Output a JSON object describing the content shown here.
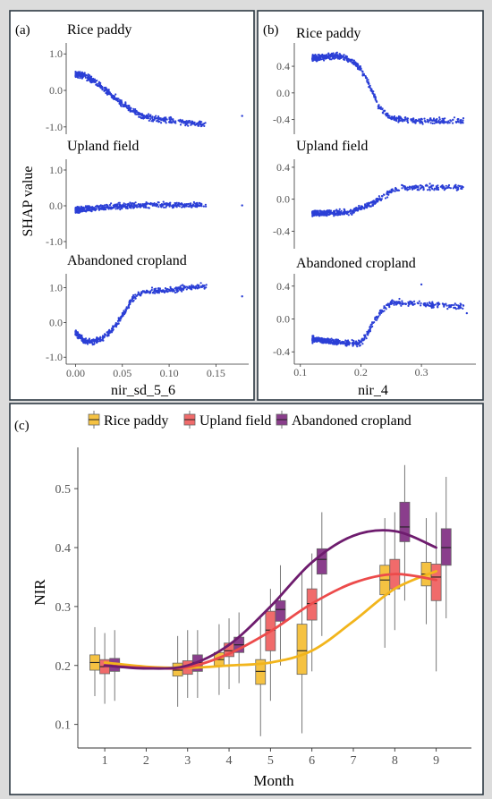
{
  "panels": {
    "a": {
      "label": "(a)",
      "xlabel": "nir_sd_5_6",
      "ylabel": "SHAP value"
    },
    "b": {
      "label": "(b)",
      "xlabel": "nir_4"
    },
    "c": {
      "label": "(c)",
      "xlabel": "Month",
      "ylabel": "NIR"
    }
  },
  "chart_data": [
    {
      "panel": "a",
      "type": "scatter",
      "xlabel": "nir_sd_5_6",
      "ylabel": "SHAP value",
      "xlim": [
        -0.01,
        0.185
      ],
      "xticks": [
        0.0,
        0.05,
        0.1,
        0.15
      ],
      "xtick_labels": [
        "0.00",
        "0.05",
        "0.10",
        "0.15"
      ],
      "color": "#2b3fd6",
      "subplots": [
        {
          "title": "Rice paddy",
          "ylim": [
            -1.2,
            1.3
          ],
          "yticks": [
            -1.0,
            0.0,
            1.0
          ],
          "ytick_labels": [
            "-1.0",
            "0.0",
            "1.0"
          ],
          "trend": [
            [
              0.0,
              0.45
            ],
            [
              0.01,
              0.4
            ],
            [
              0.02,
              0.25
            ],
            [
              0.03,
              0.05
            ],
            [
              0.04,
              -0.15
            ],
            [
              0.05,
              -0.35
            ],
            [
              0.06,
              -0.55
            ],
            [
              0.07,
              -0.68
            ],
            [
              0.08,
              -0.75
            ],
            [
              0.1,
              -0.82
            ],
            [
              0.12,
              -0.88
            ],
            [
              0.14,
              -0.95
            ]
          ],
          "outliers": [
            [
              0.178,
              -0.7
            ]
          ]
        },
        {
          "title": "Upland field",
          "ylim": [
            -1.2,
            1.3
          ],
          "yticks": [
            -1.0,
            0.0,
            1.0
          ],
          "ytick_labels": [
            "-1.0",
            "0.0",
            "1.0"
          ],
          "trend": [
            [
              0.0,
              -0.12
            ],
            [
              0.02,
              -0.08
            ],
            [
              0.04,
              -0.03
            ],
            [
              0.06,
              0.0
            ],
            [
              0.08,
              0.02
            ],
            [
              0.1,
              0.02
            ],
            [
              0.12,
              0.02
            ],
            [
              0.14,
              0.02
            ]
          ],
          "outliers": [
            [
              0.178,
              0.01
            ]
          ]
        },
        {
          "title": "Abandoned cropland",
          "ylim": [
            -1.2,
            1.4
          ],
          "yticks": [
            -1.0,
            0.0,
            1.0
          ],
          "ytick_labels": [
            "-1.0",
            "0.0",
            "1.0"
          ],
          "trend": [
            [
              0.0,
              -0.3
            ],
            [
              0.01,
              -0.55
            ],
            [
              0.02,
              -0.55
            ],
            [
              0.03,
              -0.45
            ],
            [
              0.04,
              -0.2
            ],
            [
              0.05,
              0.2
            ],
            [
              0.06,
              0.65
            ],
            [
              0.07,
              0.85
            ],
            [
              0.08,
              0.9
            ],
            [
              0.1,
              0.95
            ],
            [
              0.12,
              1.0
            ],
            [
              0.14,
              1.05
            ]
          ],
          "outliers": [
            [
              0.178,
              0.75
            ]
          ]
        }
      ]
    },
    {
      "panel": "b",
      "type": "scatter",
      "xlabel": "nir_4",
      "xlim": [
        0.09,
        0.39
      ],
      "xticks": [
        0.1,
        0.2,
        0.3
      ],
      "xtick_labels": [
        "0.1",
        "0.2",
        "0.3"
      ],
      "color": "#2b3fd6",
      "subplots": [
        {
          "title": "Rice paddy",
          "ylim": [
            -0.62,
            0.75
          ],
          "yticks": [
            -0.4,
            0.0,
            0.4
          ],
          "ytick_labels": [
            "-0.4",
            "0.0",
            "0.4"
          ],
          "trend": [
            [
              0.12,
              0.52
            ],
            [
              0.15,
              0.55
            ],
            [
              0.17,
              0.55
            ],
            [
              0.19,
              0.45
            ],
            [
              0.2,
              0.35
            ],
            [
              0.21,
              0.2
            ],
            [
              0.22,
              0.0
            ],
            [
              0.23,
              -0.2
            ],
            [
              0.24,
              -0.32
            ],
            [
              0.25,
              -0.38
            ],
            [
              0.27,
              -0.4
            ],
            [
              0.3,
              -0.42
            ],
            [
              0.37,
              -0.42
            ]
          ],
          "outliers": []
        },
        {
          "title": "Upland field",
          "ylim": [
            -0.62,
            0.5
          ],
          "yticks": [
            -0.4,
            0.0,
            0.4
          ],
          "ytick_labels": [
            "-0.4",
            "0.0",
            "0.4"
          ],
          "trend": [
            [
              0.12,
              -0.18
            ],
            [
              0.16,
              -0.17
            ],
            [
              0.18,
              -0.16
            ],
            [
              0.2,
              -0.12
            ],
            [
              0.22,
              -0.05
            ],
            [
              0.23,
              0.0
            ],
            [
              0.24,
              0.05
            ],
            [
              0.25,
              0.1
            ],
            [
              0.27,
              0.15
            ],
            [
              0.3,
              0.15
            ],
            [
              0.37,
              0.15
            ]
          ],
          "outliers": []
        },
        {
          "title": "Abandoned cropland",
          "ylim": [
            -0.55,
            0.55
          ],
          "yticks": [
            -0.4,
            0.0,
            0.4
          ],
          "ytick_labels": [
            "-0.4",
            "0.0",
            "0.4"
          ],
          "trend": [
            [
              0.12,
              -0.25
            ],
            [
              0.16,
              -0.28
            ],
            [
              0.19,
              -0.3
            ],
            [
              0.2,
              -0.28
            ],
            [
              0.21,
              -0.2
            ],
            [
              0.22,
              -0.05
            ],
            [
              0.23,
              0.05
            ],
            [
              0.24,
              0.15
            ],
            [
              0.25,
              0.2
            ],
            [
              0.27,
              0.2
            ],
            [
              0.3,
              0.18
            ],
            [
              0.37,
              0.15
            ]
          ],
          "outliers": [
            [
              0.375,
              0.07
            ],
            [
              0.3,
              0.42
            ]
          ]
        }
      ]
    },
    {
      "panel": "c",
      "type": "box",
      "xlabel": "Month",
      "ylabel": "NIR",
      "xlim": [
        0.35,
        9.85
      ],
      "ylim": [
        0.06,
        0.57
      ],
      "xticks": [
        1,
        2,
        3,
        4,
        5,
        6,
        7,
        8,
        9
      ],
      "xtick_labels": [
        "1",
        "2",
        "3",
        "4",
        "5",
        "6",
        "7",
        "8",
        "9"
      ],
      "yticks": [
        0.1,
        0.2,
        0.3,
        0.4,
        0.5
      ],
      "ytick_labels": [
        "0.1",
        "0.2",
        "0.3",
        "0.4",
        "0.5"
      ],
      "legend_position": "top",
      "series": [
        {
          "name": "Rice paddy",
          "fill": "#f5c242",
          "line": "#f2b51c",
          "boxes": [
            {
              "x": 1,
              "q1": 0.192,
              "median": 0.205,
              "q3": 0.218,
              "lo": 0.148,
              "hi": 0.265
            },
            {
              "x": 3,
              "q1": 0.182,
              "median": 0.192,
              "q3": 0.204,
              "lo": 0.13,
              "hi": 0.25
            },
            {
              "x": 4,
              "q1": 0.2,
              "median": 0.21,
              "q3": 0.222,
              "lo": 0.15,
              "hi": 0.27
            },
            {
              "x": 5,
              "q1": 0.168,
              "median": 0.19,
              "q3": 0.21,
              "lo": 0.08,
              "hi": 0.28
            },
            {
              "x": 6,
              "q1": 0.185,
              "median": 0.225,
              "q3": 0.27,
              "lo": 0.085,
              "hi": 0.36
            },
            {
              "x": 8,
              "q1": 0.32,
              "median": 0.345,
              "q3": 0.37,
              "lo": 0.23,
              "hi": 0.45
            },
            {
              "x": 9,
              "q1": 0.335,
              "median": 0.355,
              "q3": 0.375,
              "lo": 0.27,
              "hi": 0.45
            }
          ],
          "curve": [
            [
              1,
              0.205
            ],
            [
              2,
              0.198
            ],
            [
              3,
              0.196
            ],
            [
              4,
              0.2
            ],
            [
              5,
              0.205
            ],
            [
              6,
              0.225
            ],
            [
              7,
              0.275
            ],
            [
              8,
              0.33
            ],
            [
              9,
              0.36
            ]
          ]
        },
        {
          "name": "Upland field",
          "fill": "#f06b6b",
          "line": "#ec4b4b",
          "boxes": [
            {
              "x": 1,
              "q1": 0.186,
              "median": 0.198,
              "q3": 0.21,
              "lo": 0.135,
              "hi": 0.255
            },
            {
              "x": 3,
              "q1": 0.185,
              "median": 0.196,
              "q3": 0.208,
              "lo": 0.145,
              "hi": 0.26
            },
            {
              "x": 4,
              "q1": 0.215,
              "median": 0.225,
              "q3": 0.238,
              "lo": 0.16,
              "hi": 0.28
            },
            {
              "x": 5,
              "q1": 0.225,
              "median": 0.26,
              "q3": 0.292,
              "lo": 0.14,
              "hi": 0.33
            },
            {
              "x": 6,
              "q1": 0.277,
              "median": 0.305,
              "q3": 0.33,
              "lo": 0.19,
              "hi": 0.39
            },
            {
              "x": 8,
              "q1": 0.33,
              "median": 0.355,
              "q3": 0.38,
              "lo": 0.26,
              "hi": 0.46
            },
            {
              "x": 9,
              "q1": 0.31,
              "median": 0.35,
              "q3": 0.372,
              "lo": 0.19,
              "hi": 0.46
            }
          ],
          "curve": [
            [
              1,
              0.2
            ],
            [
              2,
              0.196
            ],
            [
              3,
              0.197
            ],
            [
              4,
              0.22
            ],
            [
              5,
              0.258
            ],
            [
              6,
              0.305
            ],
            [
              7,
              0.34
            ],
            [
              8,
              0.355
            ],
            [
              9,
              0.345
            ]
          ]
        },
        {
          "name": "Abandoned cropland",
          "fill": "#8a3e8c",
          "line": "#6e1c6e",
          "boxes": [
            {
              "x": 1,
              "q1": 0.19,
              "median": 0.2,
              "q3": 0.212,
              "lo": 0.14,
              "hi": 0.26
            },
            {
              "x": 3,
              "q1": 0.19,
              "median": 0.205,
              "q3": 0.218,
              "lo": 0.145,
              "hi": 0.26
            },
            {
              "x": 4,
              "q1": 0.222,
              "median": 0.235,
              "q3": 0.248,
              "lo": 0.17,
              "hi": 0.29
            },
            {
              "x": 5,
              "q1": 0.275,
              "median": 0.295,
              "q3": 0.31,
              "lo": 0.2,
              "hi": 0.37
            },
            {
              "x": 6,
              "q1": 0.355,
              "median": 0.38,
              "q3": 0.398,
              "lo": 0.25,
              "hi": 0.46
            },
            {
              "x": 8,
              "q1": 0.41,
              "median": 0.435,
              "q3": 0.477,
              "lo": 0.31,
              "hi": 0.54
            },
            {
              "x": 9,
              "q1": 0.37,
              "median": 0.4,
              "q3": 0.432,
              "lo": 0.28,
              "hi": 0.52
            }
          ],
          "curve": [
            [
              1,
              0.2
            ],
            [
              2,
              0.195
            ],
            [
              3,
              0.2
            ],
            [
              4,
              0.235
            ],
            [
              5,
              0.3
            ],
            [
              6,
              0.375
            ],
            [
              7,
              0.42
            ],
            [
              8,
              0.428
            ],
            [
              9,
              0.4
            ]
          ]
        }
      ]
    }
  ]
}
